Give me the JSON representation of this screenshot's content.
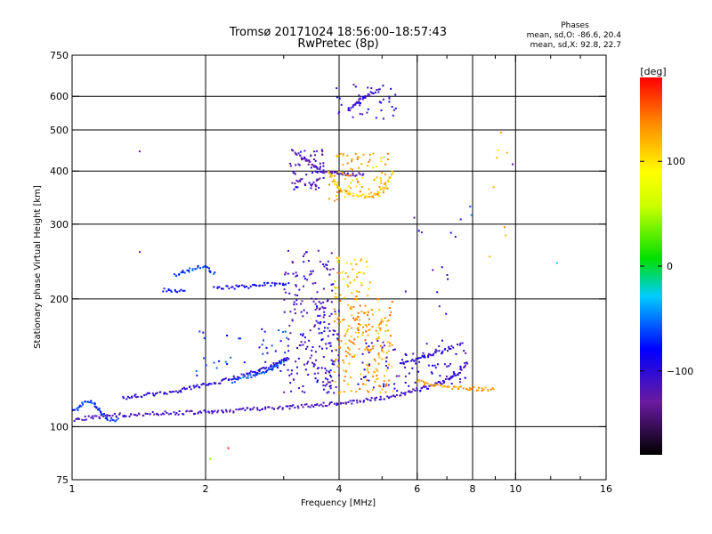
{
  "chart_data": {
    "type": "scatter",
    "title": "Tromsø 20171024 18:56:00–18:57:43",
    "subtitle": "RwPretec (8p)",
    "xlabel": "Frequency [MHz]",
    "ylabel": "Stationary phase Virtual Height [km]",
    "x_scale": "log",
    "y_scale": "log",
    "xlim": [
      1,
      16
    ],
    "ylim": [
      75,
      750
    ],
    "x_ticks": [
      1,
      2,
      4,
      6,
      8,
      10,
      16
    ],
    "x_tick_labels": [
      "1",
      "2",
      "4",
      "6",
      "8",
      "10",
      "16"
    ],
    "x_minor_ticks": [
      3,
      5,
      7,
      9,
      12,
      14
    ],
    "y_ticks": [
      75,
      100,
      200,
      300,
      400,
      500,
      600,
      750
    ],
    "y_tick_labels": [
      "75",
      "100",
      "200",
      "300",
      "400",
      "500",
      "600",
      "750"
    ],
    "grid": true,
    "grid_x": [
      2,
      4,
      6,
      8,
      10
    ],
    "grid_y": [
      100,
      200,
      300,
      400,
      500,
      600
    ],
    "phases_note": {
      "header": "Phases",
      "line1": "mean, sd,O: -86.6, 20.4",
      "line2": "mean, sd,X:  92.8, 22.7"
    },
    "colorbar": {
      "label": "[deg]",
      "range": [
        -180,
        180
      ],
      "ticks": [
        100,
        0,
        -100
      ],
      "tick_labels": [
        "100",
        "0",
        "−100"
      ]
    },
    "traces": [
      {
        "phase": -110,
        "points": [
          [
            1.0,
            104
          ],
          [
            1.1,
            105
          ],
          [
            1.2,
            106
          ],
          [
            1.4,
            107
          ],
          [
            1.6,
            107.5
          ],
          [
            1.8,
            108
          ],
          [
            2.0,
            108.5
          ],
          [
            2.3,
            109
          ],
          [
            2.6,
            110
          ],
          [
            3.0,
            111
          ],
          [
            3.4,
            112
          ],
          [
            3.8,
            113
          ],
          [
            4.2,
            114
          ],
          [
            4.8,
            116
          ],
          [
            5.5,
            119
          ],
          [
            6.2,
            123
          ],
          [
            6.8,
            127
          ],
          [
            7.2,
            131
          ],
          [
            7.5,
            135
          ],
          [
            7.7,
            139
          ],
          [
            7.8,
            143
          ]
        ]
      },
      {
        "phase": -100,
        "points": [
          [
            1.3,
            117
          ],
          [
            1.5,
            119
          ],
          [
            1.7,
            121
          ],
          [
            1.9,
            124
          ],
          [
            2.1,
            127
          ],
          [
            2.3,
            130
          ],
          [
            2.5,
            133
          ],
          [
            2.7,
            137
          ],
          [
            2.9,
            141
          ],
          [
            3.1,
            145
          ]
        ]
      },
      {
        "phase": -70,
        "points": [
          [
            1.0,
            108
          ],
          [
            1.03,
            110
          ],
          [
            1.06,
            114
          ],
          [
            1.1,
            115
          ],
          [
            1.14,
            111
          ],
          [
            1.18,
            106
          ],
          [
            1.22,
            104
          ],
          [
            1.28,
            103.5
          ]
        ]
      },
      {
        "phase": -60,
        "points": [
          [
            2.3,
            128
          ],
          [
            2.5,
            131
          ],
          [
            2.7,
            134
          ],
          [
            2.9,
            139
          ],
          [
            3.0,
            144
          ]
        ]
      },
      {
        "phase": -65,
        "points": [
          [
            1.7,
            228
          ],
          [
            1.8,
            232
          ],
          [
            1.9,
            236
          ],
          [
            2.0,
            238
          ],
          [
            2.05,
            232
          ],
          [
            2.1,
            228
          ]
        ]
      },
      {
        "phase": -85,
        "points": [
          [
            2.1,
            212
          ],
          [
            2.3,
            213
          ],
          [
            2.5,
            214
          ],
          [
            2.7,
            216
          ],
          [
            2.9,
            217
          ],
          [
            3.1,
            218
          ]
        ]
      },
      {
        "phase": -80,
        "points": [
          [
            1.6,
            210
          ],
          [
            1.7,
            209
          ],
          [
            1.8,
            208
          ]
        ]
      },
      {
        "phase": -120,
        "points": [
          [
            3.2,
            440
          ],
          [
            3.3,
            432
          ],
          [
            3.4,
            422
          ],
          [
            3.5,
            412
          ],
          [
            3.6,
            404
          ],
          [
            3.7,
            398
          ],
          [
            3.8,
            396
          ],
          [
            3.9,
            395
          ],
          [
            4.0,
            395
          ],
          [
            4.2,
            394
          ],
          [
            4.4,
            393
          ],
          [
            4.6,
            392
          ]
        ]
      },
      {
        "phase": 110,
        "points": [
          [
            3.8,
            400
          ],
          [
            3.9,
            380
          ],
          [
            4.0,
            365
          ],
          [
            4.2,
            355
          ],
          [
            4.4,
            350
          ],
          [
            4.6,
            348
          ],
          [
            4.8,
            352
          ],
          [
            5.0,
            360
          ],
          [
            5.1,
            372
          ],
          [
            5.2,
            385
          ],
          [
            5.3,
            400
          ]
        ]
      },
      {
        "phase": -110,
        "points": [
          [
            4.2,
            555
          ],
          [
            4.4,
            580
          ],
          [
            4.6,
            600
          ],
          [
            4.8,
            615
          ],
          [
            5.0,
            625
          ]
        ]
      },
      {
        "phase": 130,
        "points": [
          [
            6.0,
            128
          ],
          [
            6.3,
            126
          ],
          [
            6.6,
            125
          ],
          [
            7.0,
            124
          ],
          [
            7.5,
            123.5
          ],
          [
            8.0,
            123
          ],
          [
            8.5,
            122.5
          ],
          [
            9.0,
            122
          ]
        ]
      },
      {
        "phase": -100,
        "points": [
          [
            5.5,
            140
          ],
          [
            6.0,
            144
          ],
          [
            6.5,
            148
          ],
          [
            7.0,
            152
          ],
          [
            7.3,
            155
          ]
        ]
      }
    ],
    "clouds": [
      {
        "phase": -110,
        "fmin": 3.0,
        "fmax": 3.9,
        "hmin": 120,
        "hmax": 260,
        "count": 170
      },
      {
        "phase": -100,
        "fmin": 3.5,
        "fmax": 4.0,
        "hmin": 120,
        "hmax": 200,
        "count": 60
      },
      {
        "phase": 130,
        "fmin": 3.9,
        "fmax": 5.3,
        "hmin": 120,
        "hmax": 200,
        "count": 200
      },
      {
        "phase": 110,
        "fmin": 3.9,
        "fmax": 4.7,
        "hmin": 200,
        "hmax": 250,
        "count": 50
      },
      {
        "phase": -115,
        "fmin": 3.1,
        "fmax": 3.7,
        "hmin": 360,
        "hmax": 450,
        "count": 70
      },
      {
        "phase": 120,
        "fmin": 3.8,
        "fmax": 5.2,
        "hmin": 340,
        "hmax": 440,
        "count": 90
      },
      {
        "phase": -100,
        "fmin": 3.9,
        "fmax": 5.4,
        "hmin": 530,
        "hmax": 640,
        "count": 40
      },
      {
        "phase": -100,
        "fmin": 4.4,
        "fmax": 7.8,
        "hmin": 120,
        "hmax": 160,
        "count": 90
      },
      {
        "phase": -75,
        "fmin": 1.9,
        "fmax": 3.1,
        "hmin": 130,
        "hmax": 170,
        "count": 40
      },
      {
        "phase": -110,
        "fmin": 5.6,
        "fmax": 7.9,
        "hmin": 180,
        "hmax": 320,
        "count": 14
      },
      {
        "phase": 120,
        "fmin": 8.6,
        "fmax": 9.8,
        "hmin": 230,
        "hmax": 540,
        "count": 8
      }
    ],
    "stray_points": [
      {
        "x": 1.42,
        "y": 445,
        "phase": -120
      },
      {
        "x": 1.42,
        "y": 258,
        "phase": -120
      },
      {
        "x": 2.05,
        "y": 84,
        "phase": 40
      },
      {
        "x": 2.25,
        "y": 89,
        "phase": 170
      },
      {
        "x": 9.85,
        "y": 415,
        "phase": -120
      },
      {
        "x": 12.4,
        "y": 243,
        "phase": -30
      },
      {
        "x": 7.9,
        "y": 330,
        "phase": -60
      },
      {
        "x": 7.95,
        "y": 315,
        "phase": -40
      }
    ]
  }
}
